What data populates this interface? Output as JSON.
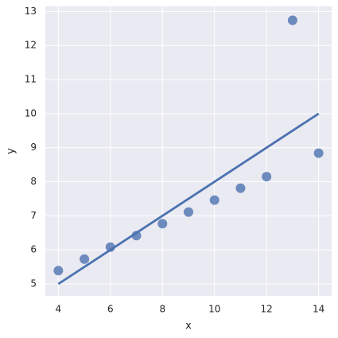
{
  "chart_data": {
    "type": "scatter",
    "x": [
      10,
      8,
      13,
      9,
      11,
      14,
      6,
      4,
      12,
      7,
      5
    ],
    "values": [
      7.46,
      6.77,
      12.74,
      7.11,
      7.81,
      8.84,
      6.08,
      5.39,
      8.15,
      6.42,
      5.73
    ],
    "color": "#4c72b0",
    "fit": {
      "x": [
        4,
        14
      ],
      "values": [
        5,
        10
      ],
      "color": "#4c72b0"
    },
    "xlabel": "x",
    "ylabel": "y",
    "xlim": [
      3.5,
      14.5
    ],
    "ylim": [
      4.65,
      13.15
    ],
    "xticks": [
      4,
      6,
      8,
      10,
      12,
      14
    ],
    "yticks": [
      5,
      6,
      7,
      8,
      9,
      10,
      11,
      12,
      13
    ],
    "grid": true
  }
}
